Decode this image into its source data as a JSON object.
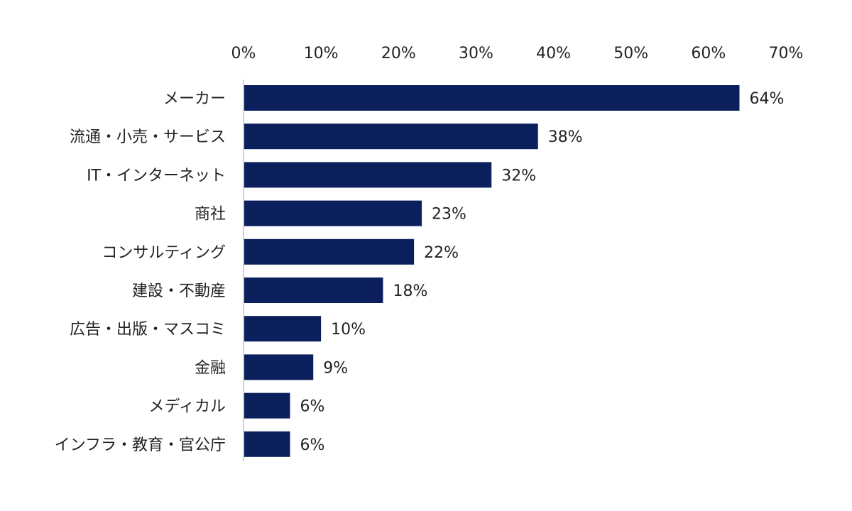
{
  "chart_data": {
    "type": "bar",
    "orientation": "horizontal",
    "categories": [
      "メーカー",
      "流通・小売・サービス",
      "IT・インターネット",
      "商社",
      "コンサルティング",
      "建設・不動産",
      "広告・出版・マスコミ",
      "金融",
      "メディカル",
      "インフラ・教育・官公庁"
    ],
    "values": [
      64,
      38,
      32,
      23,
      22,
      18,
      10,
      9,
      6,
      6
    ],
    "data_labels": [
      "64%",
      "38%",
      "32%",
      "23%",
      "22%",
      "18%",
      "10%",
      "9%",
      "6%",
      "6%"
    ],
    "x_ticks": [
      "0%",
      "10%",
      "20%",
      "30%",
      "40%",
      "50%",
      "60%",
      "70%"
    ],
    "xlim": [
      0,
      70
    ],
    "x_axis_position": "top",
    "title": "",
    "xlabel": "",
    "ylabel": "",
    "grid": false,
    "legend": "none",
    "bar_color": "#0b1f5c",
    "axis_color": "#bfbfbf"
  }
}
